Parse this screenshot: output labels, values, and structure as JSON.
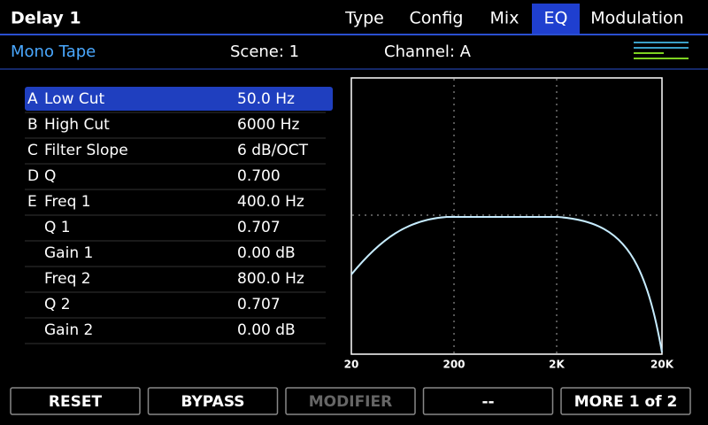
{
  "header": {
    "title": "Delay 1",
    "tabs": [
      {
        "label": "Type"
      },
      {
        "label": "Config"
      },
      {
        "label": "Mix"
      },
      {
        "label": "EQ",
        "active": true
      },
      {
        "label": "Modulation"
      }
    ]
  },
  "subheader": {
    "preset": "Mono Tape",
    "scene": "Scene: 1",
    "channel": "Channel: A"
  },
  "params": [
    {
      "letter": "A",
      "name": "Low Cut",
      "value": "50.0 Hz",
      "selected": true
    },
    {
      "letter": "B",
      "name": "High Cut",
      "value": "6000 Hz"
    },
    {
      "letter": "C",
      "name": "Filter Slope",
      "value": "6 dB/OCT"
    },
    {
      "letter": "D",
      "name": "Q",
      "value": "0.700"
    },
    {
      "letter": "E",
      "name": "Freq 1",
      "value": "400.0 Hz"
    },
    {
      "name": "Q 1",
      "value": "0.707"
    },
    {
      "name": "Gain 1",
      "value": "0.00 dB"
    },
    {
      "name": "Freq 2",
      "value": "800.0 Hz"
    },
    {
      "name": "Q 2",
      "value": "0.707"
    },
    {
      "name": "Gain 2",
      "value": "0.00 dB"
    }
  ],
  "graph": {
    "x_labels": [
      "20",
      "200",
      "2K",
      "20K"
    ]
  },
  "buttons": [
    {
      "label": "RESET"
    },
    {
      "label": "BYPASS"
    },
    {
      "label": "MODIFIER",
      "disabled": true
    },
    {
      "label": "--"
    },
    {
      "label": "MORE 1 of 2"
    }
  ]
}
